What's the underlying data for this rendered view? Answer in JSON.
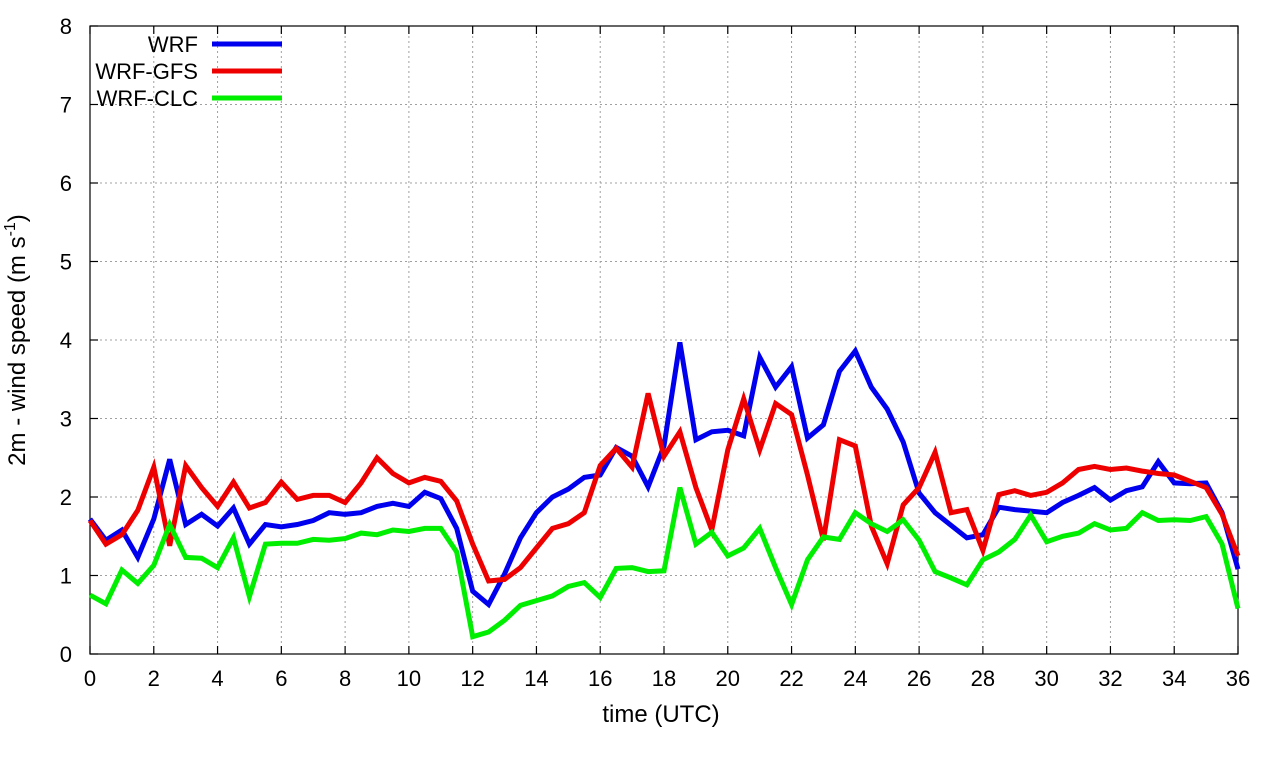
{
  "chart_data": {
    "type": "line",
    "xlabel": "time (UTC)",
    "ylabel": {
      "text": "2m - wind speed  (m s",
      "superscript": "-1",
      "suffix": ")"
    },
    "xlim": [
      0,
      36
    ],
    "ylim": [
      0,
      8
    ],
    "xticks": [
      0,
      2,
      4,
      6,
      8,
      10,
      12,
      14,
      16,
      18,
      20,
      22,
      24,
      26,
      28,
      30,
      32,
      34,
      36
    ],
    "yticks": [
      0,
      1,
      2,
      3,
      4,
      5,
      6,
      7,
      8
    ],
    "grid": true,
    "legend_position": "top-left",
    "x": [
      0,
      0.5,
      1,
      1.5,
      2,
      2.5,
      3,
      3.5,
      4,
      4.5,
      5,
      5.5,
      6,
      6.5,
      7,
      7.5,
      8,
      8.5,
      9,
      9.5,
      10,
      10.5,
      11,
      11.5,
      12,
      12.5,
      13,
      13.5,
      14,
      14.5,
      15,
      15.5,
      16,
      16.5,
      17,
      17.5,
      18,
      18.5,
      19,
      19.5,
      20,
      20.5,
      21,
      21.5,
      22,
      22.5,
      23,
      23.5,
      24,
      24.5,
      25,
      25.5,
      26,
      26.5,
      27,
      27.5,
      28,
      28.5,
      29,
      29.5,
      30,
      30.5,
      31,
      31.5,
      32,
      32.5,
      33,
      33.5,
      34,
      34.5,
      35,
      35.5,
      36
    ],
    "series": [
      {
        "name": "WRF",
        "color": "#0000ee",
        "values": [
          1.72,
          1.45,
          1.58,
          1.23,
          1.72,
          2.48,
          1.65,
          1.78,
          1.63,
          1.86,
          1.4,
          1.65,
          1.62,
          1.65,
          1.7,
          1.8,
          1.78,
          1.8,
          1.88,
          1.92,
          1.88,
          2.06,
          1.98,
          1.6,
          0.8,
          0.63,
          1.02,
          1.48,
          1.8,
          2.0,
          2.1,
          2.25,
          2.28,
          2.63,
          2.52,
          2.13,
          2.65,
          3.97,
          2.73,
          2.83,
          2.85,
          2.78,
          3.78,
          3.4,
          3.66,
          2.75,
          2.92,
          3.6,
          3.86,
          3.4,
          3.12,
          2.7,
          2.05,
          1.8,
          1.64,
          1.48,
          1.52,
          1.87,
          1.84,
          1.82,
          1.8,
          1.93,
          2.02,
          2.12,
          1.96,
          2.08,
          2.13,
          2.45,
          2.18,
          2.17,
          2.18,
          1.8,
          1.08
        ]
      },
      {
        "name": "WRF-GFS",
        "color": "#ee0000",
        "values": [
          1.7,
          1.4,
          1.52,
          1.83,
          2.38,
          1.38,
          2.4,
          2.12,
          1.88,
          2.19,
          1.86,
          1.93,
          2.19,
          1.97,
          2.02,
          2.02,
          1.93,
          2.18,
          2.5,
          2.3,
          2.18,
          2.25,
          2.2,
          1.95,
          1.4,
          0.93,
          0.95,
          1.1,
          1.35,
          1.6,
          1.66,
          1.8,
          2.4,
          2.62,
          2.38,
          3.32,
          2.52,
          2.83,
          2.12,
          1.58,
          2.6,
          3.25,
          2.6,
          3.19,
          3.05,
          2.28,
          1.45,
          2.73,
          2.65,
          1.63,
          1.15,
          1.9,
          2.12,
          2.57,
          1.8,
          1.84,
          1.32,
          2.03,
          2.08,
          2.02,
          2.06,
          2.18,
          2.35,
          2.39,
          2.35,
          2.37,
          2.33,
          2.3,
          2.28,
          2.2,
          2.12,
          1.78,
          1.25
        ]
      },
      {
        "name": "WRF-CLC",
        "color": "#00ee00",
        "values": [
          0.75,
          0.64,
          1.07,
          0.9,
          1.13,
          1.65,
          1.23,
          1.22,
          1.1,
          1.48,
          0.73,
          1.4,
          1.41,
          1.41,
          1.46,
          1.45,
          1.47,
          1.54,
          1.52,
          1.58,
          1.56,
          1.6,
          1.6,
          1.3,
          0.22,
          0.28,
          0.43,
          0.62,
          0.68,
          0.74,
          0.86,
          0.91,
          0.72,
          1.09,
          1.1,
          1.05,
          1.06,
          2.12,
          1.4,
          1.55,
          1.25,
          1.35,
          1.6,
          1.1,
          0.63,
          1.2,
          1.49,
          1.46,
          1.8,
          1.66,
          1.56,
          1.71,
          1.45,
          1.05,
          0.97,
          0.88,
          1.2,
          1.3,
          1.46,
          1.77,
          1.43,
          1.5,
          1.54,
          1.66,
          1.58,
          1.6,
          1.8,
          1.7,
          1.71,
          1.7,
          1.75,
          1.4,
          0.58
        ]
      }
    ]
  }
}
